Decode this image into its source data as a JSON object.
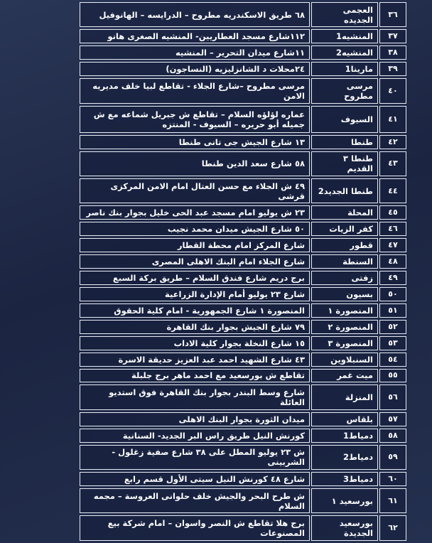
{
  "table": {
    "rows": [
      [
        "٣٦",
        "العجمى الجديده",
        "٦٨ طريق الاسكندريه مطروح – الدرايسه – الهانوفيل"
      ],
      [
        "٣٧",
        "المنشيه1",
        "١١٢شارع مسجد العطاريين- المنشيه الصغرى هانو"
      ],
      [
        "٣٨",
        "المنشيه2",
        "١١شارع ميدان التحرير – المنشيه"
      ],
      [
        "٣٩",
        "مارينا1",
        "٢٤محلات د الشانزليزيه (النساجون)"
      ],
      [
        "٤٠",
        "مرسى مطروح",
        "مرسى مطروح –شارع الجلاء - تقاطع لبيا خلف مديريه الامن"
      ],
      [
        "٤١",
        "السيوف",
        "عماره لؤلؤه السلام – تقاطع ش جبريل شماعه مع ش جميله أبو حريره – السيوف - المنتزه"
      ],
      [
        "٤٢",
        "طنطا",
        "١٣ شارع الجيش جى تانى طنطا"
      ],
      [
        "٤٣",
        "طنطا ٣ القديم",
        "٥٨ شارع سعد الدين طنطا"
      ],
      [
        "٤٤",
        "طنطا الجديد2",
        "٤٩ ش الجلاء مع حسن العتال امام الامن المركزى قرشى"
      ],
      [
        "٤٥",
        "المحلة",
        "٢٣ ش يوليو امام مسجد عبد الحى خليل بجوار بنك ناصر"
      ],
      [
        "٤٦",
        "كفر الزيات",
        "٥٠ شارع الجيش ميدان محمد نجيب"
      ],
      [
        "٤٧",
        "قطور",
        "شارع المركز امام محطة القطار"
      ],
      [
        "٤٨",
        "السنطة",
        "شارع الجلاء امام البنك الاهلى المصرى"
      ],
      [
        "٤٩",
        "زفتى",
        "برج دريم شارع فندق السلام – طريق بركة السبع"
      ],
      [
        "٥٠",
        "بسيون",
        "شارع ٢٣ يوليو أمام الإدارة الزراعية"
      ],
      [
        "٥١",
        "المنصورة ١",
        "المنصورة ١ شارع الجمهورية - امام كلية الحقوق"
      ],
      [
        "٥٢",
        "المنصورة ٢",
        "٧٩ شارع الجيش بجوار بنك القاهرة"
      ],
      [
        "٥٣",
        "المنصورة ٣",
        "١٥ شارع النخلة بجوار كلية الاداب"
      ],
      [
        "٥٤",
        "السنبلاوين",
        "٤٣ شارع الشهيد احمد عبد العزيز حديقة الاسرة"
      ],
      [
        "٥٥",
        "ميت غمر",
        "تقاطع ش بورسعيد مع احمد ماهر برج جلبلة"
      ],
      [
        "٥٦",
        "المنزلة",
        "شارع وسط البندر بجوار بنك القاهرة فوق استديو العائلة"
      ],
      [
        "٥٧",
        "بلقاس",
        "ميدان الثورة بجوار البنك الاهلى"
      ],
      [
        "٥٨",
        "دمياط1",
        "كورنش النيل طريق راس البر الجديد- السنانية"
      ],
      [
        "٥٩",
        "دمياط2",
        "ش ٢٣ يوليو المطل على ٣٨ شارع صفية زغلول - الشربينى"
      ],
      [
        "٦٠",
        "دمياط3",
        "شارع ٤٨ كورنش النيل سيتى الأول قسم رابع"
      ],
      [
        "٦١",
        "بورسعيد ١",
        "ش طرح البحر والجيش خلف حلوانى العروسة – مجمه السلام"
      ],
      [
        "٦٢",
        "بورسعيد الجديدة",
        "برج هلا تقاطع ش النصر واسوان – امام شركة بيع المصنوعات"
      ]
    ]
  }
}
